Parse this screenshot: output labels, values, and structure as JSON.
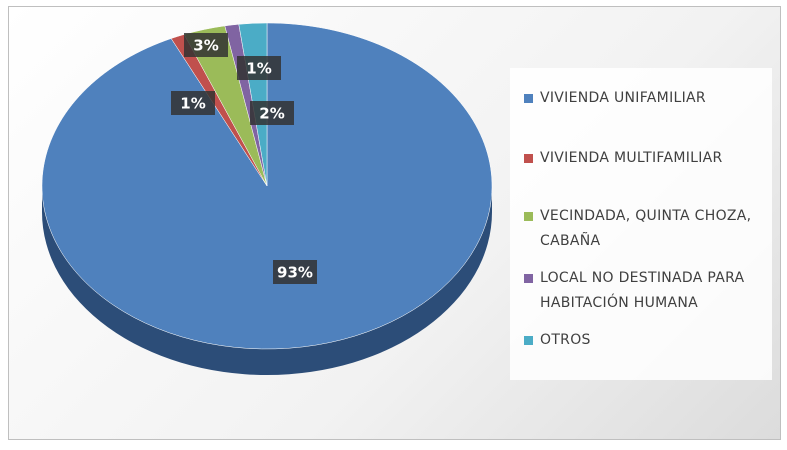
{
  "chart_data": {
    "type": "pie",
    "categories": [
      "VIVIENDA UNIFAMILIAR",
      "VIVIENDA MULTIFAMILIAR",
      "VECINDADA, QUINTA CHOZA, CABAÑA",
      "LOCAL NO DESTINADA PARA HABITACIÓN HUMANA",
      "OTROS"
    ],
    "values": [
      93,
      1,
      3,
      1,
      2
    ],
    "value_labels": [
      "93%",
      "1%",
      "3%",
      "1%",
      "2%"
    ],
    "colors": [
      "#4f81bd",
      "#c0504d",
      "#9bbb59",
      "#8064a2",
      "#4bacc6"
    ],
    "legend": "right"
  }
}
